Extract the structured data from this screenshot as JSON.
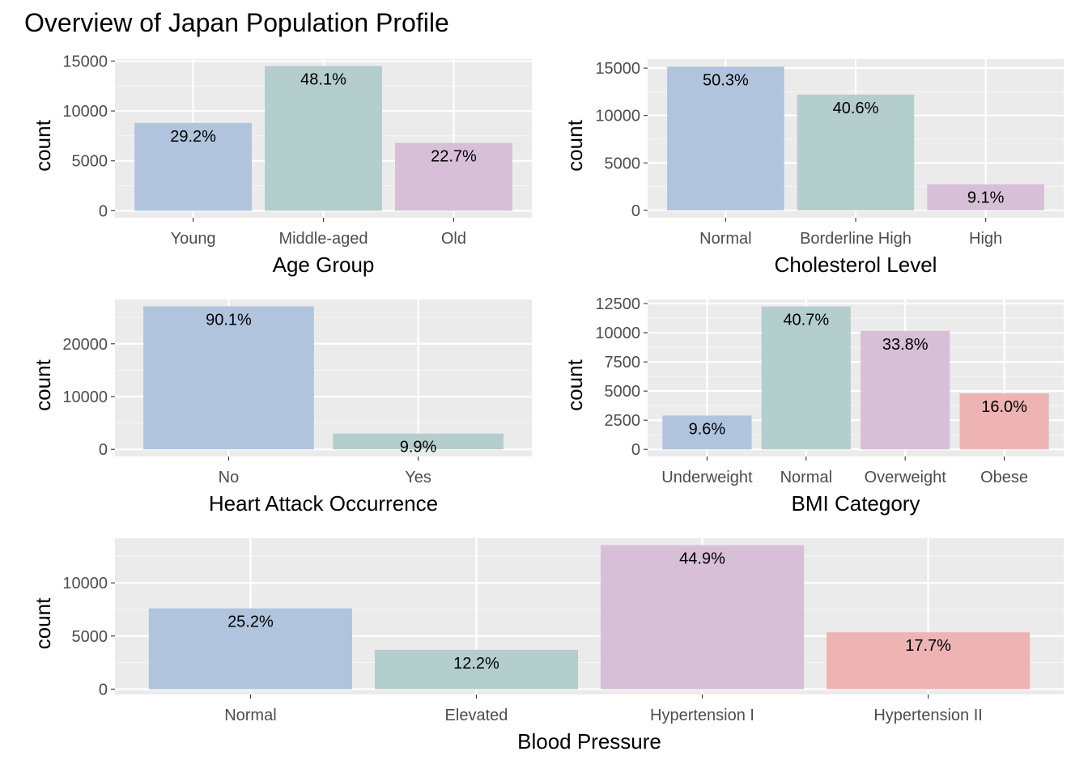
{
  "title": "Overview of Japan Population Profile",
  "colors": {
    "panel_bg": "#EBEBEB",
    "grid_major": "#FFFFFF",
    "grid_minor": "#F5F5F5",
    "tick_text": "#4D4D4D",
    "bar_fill": [
      "#B0C4DE",
      "#B4CDCD",
      "#D8BFD8",
      "#EEB4B4"
    ]
  },
  "chart_data": [
    {
      "id": "age",
      "type": "bar",
      "categories": [
        "Young",
        "Middle-aged",
        "Old"
      ],
      "values": [
        8800,
        14500,
        6800
      ],
      "labels": [
        "29.2%",
        "48.1%",
        "22.7%"
      ],
      "xlabel": "Age Group",
      "ylabel": "count",
      "yticks": [
        0,
        5000,
        10000,
        15000
      ],
      "ylim": [
        -700,
        15200
      ],
      "grid": true
    },
    {
      "id": "cholesterol",
      "type": "bar",
      "categories": [
        "Normal",
        "Borderline High",
        "High"
      ],
      "values": [
        15150,
        12200,
        2750
      ],
      "labels": [
        "50.3%",
        "40.6%",
        "9.1%"
      ],
      "xlabel": "Cholesterol Level",
      "ylabel": "count",
      "yticks": [
        0,
        5000,
        10000,
        15000
      ],
      "ylim": [
        -780,
        15950
      ],
      "grid": true
    },
    {
      "id": "heart",
      "type": "bar",
      "categories": [
        "No",
        "Yes"
      ],
      "values": [
        27100,
        3000
      ],
      "labels": [
        "90.1%",
        "9.9%"
      ],
      "xlabel": "Heart Attack Occurrence",
      "ylabel": "count",
      "yticks": [
        0,
        10000,
        20000
      ],
      "ylim": [
        -1350,
        28400
      ],
      "grid": true
    },
    {
      "id": "bmi",
      "type": "bar",
      "categories": [
        "Underweight",
        "Normal",
        "Overweight",
        "Obese"
      ],
      "values": [
        2900,
        12250,
        10150,
        4800
      ],
      "labels": [
        "9.6%",
        "40.7%",
        "33.8%",
        "16.0%"
      ],
      "xlabel": "BMI Category",
      "ylabel": "count",
      "yticks": [
        0,
        2500,
        5000,
        7500,
        10000,
        12500
      ],
      "ylim": [
        -610,
        12850
      ],
      "grid": true
    },
    {
      "id": "bp",
      "type": "bar",
      "categories": [
        "Normal",
        "Elevated",
        "Hypertension I",
        "Hypertension II"
      ],
      "values": [
        7600,
        3700,
        13550,
        5350
      ],
      "labels": [
        "25.2%",
        "12.2%",
        "44.9%",
        "17.7%"
      ],
      "xlabel": "Blood Pressure",
      "ylabel": "count",
      "yticks": [
        0,
        5000,
        10000
      ],
      "ylim": [
        -500,
        14200
      ],
      "grid": true
    }
  ]
}
